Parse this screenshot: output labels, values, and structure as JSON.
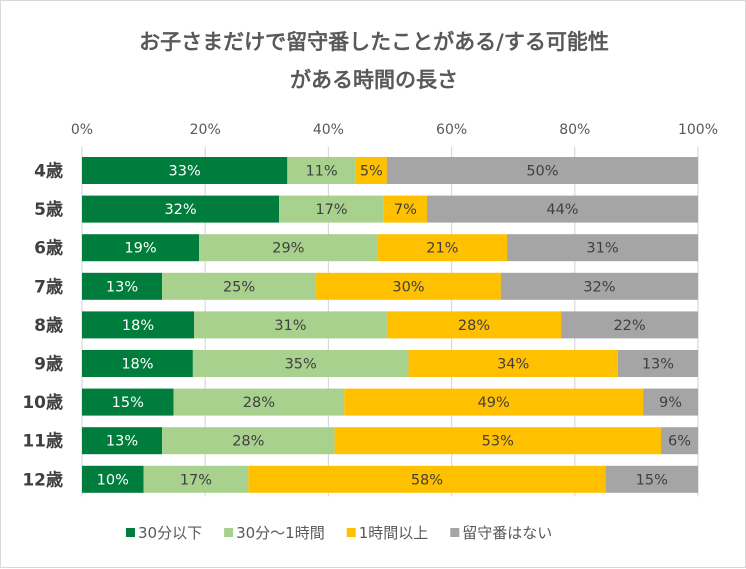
{
  "chart_data": {
    "type": "bar",
    "orientation": "horizontal",
    "stacked": "percent",
    "title_lines": [
      "お子さまだけで留守番したことがある/する可能性",
      "がある時間の長さ"
    ],
    "categories": [
      "4歳",
      "5歳",
      "6歳",
      "7歳",
      "8歳",
      "9歳",
      "10歳",
      "11歳",
      "12歳"
    ],
    "xlim": [
      0,
      100
    ],
    "x_ticks": [
      "0%",
      "20%",
      "40%",
      "60%",
      "80%",
      "100%"
    ],
    "x_tick_values": [
      0,
      20,
      40,
      60,
      80,
      100
    ],
    "grid": true,
    "legend_position": "bottom",
    "series": [
      {
        "name": "30分以下",
        "color": "#007D3C",
        "label_color": "#ffffff",
        "values": [
          33,
          32,
          19,
          13,
          18,
          18,
          15,
          13,
          10
        ]
      },
      {
        "name": "30分～1時間",
        "color": "#A9D18E",
        "label_color": "#404040",
        "values": [
          11,
          17,
          29,
          25,
          31,
          35,
          28,
          28,
          17
        ]
      },
      {
        "name": "1時間以上",
        "color": "#FFC000",
        "label_color": "#404040",
        "values": [
          5,
          7,
          21,
          30,
          28,
          34,
          49,
          53,
          58
        ]
      },
      {
        "name": "留守番はない",
        "color": "#A5A5A5",
        "label_color": "#404040",
        "values": [
          50,
          44,
          31,
          32,
          22,
          13,
          9,
          6,
          15
        ]
      }
    ]
  }
}
